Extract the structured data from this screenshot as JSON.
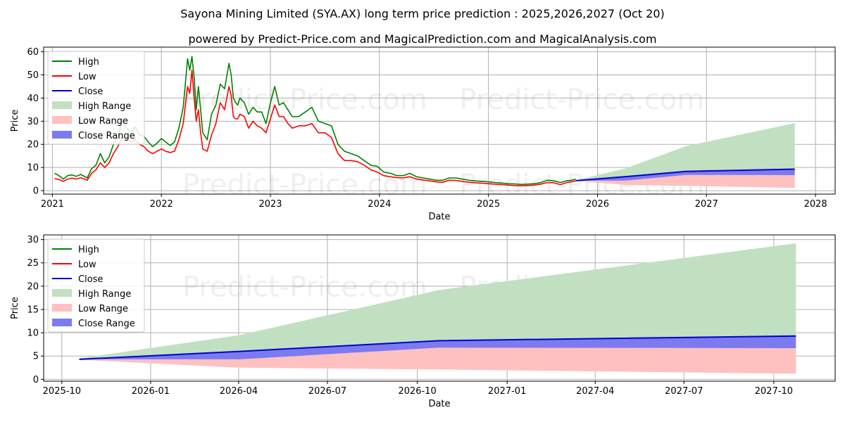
{
  "title": "Sayona Mining Limited (SYA.AX) long term price prediction : 2025,2026,2027 (Oct 20)",
  "subtitle": "powered by Predict-Price.com and MagicalPrediction.com and MagicalAnalysis.com",
  "watermark": "Predict-Price.com",
  "colors": {
    "high": "#008000",
    "low": "#ff0000",
    "close": "#0000cd",
    "high_range": "#c1e0c1",
    "low_range": "#ffc0c0",
    "close_range": "#7b7bef",
    "grid": "#b0b0b0"
  },
  "chart_data": [
    {
      "type": "line",
      "panel": "top",
      "title": "Sayona Mining Limited (SYA.AX) long term price prediction : 2025,2026,2027 (Oct 20)",
      "xlabel": "Date",
      "ylabel": "Price",
      "xlim": [
        2020.92,
        2028.18
      ],
      "ylim": [
        -1.5,
        62
      ],
      "xticks": [
        2021,
        2022,
        2023,
        2024,
        2025,
        2026,
        2027,
        2028
      ],
      "xtick_labels": [
        "2021",
        "2022",
        "2023",
        "2024",
        "2025",
        "2026",
        "2027",
        "2028"
      ],
      "yticks": [
        0,
        10,
        20,
        30,
        40,
        50,
        60
      ],
      "legend": [
        "High",
        "Low",
        "Close",
        "High Range",
        "Low Range",
        "Close Range"
      ],
      "legend_position": "top-left",
      "history": {
        "x": [
          2021.02,
          2021.06,
          2021.1,
          2021.14,
          2021.18,
          2021.22,
          2021.26,
          2021.32,
          2021.36,
          2021.4,
          2021.44,
          2021.48,
          2021.52,
          2021.56,
          2021.6,
          2021.64,
          2021.68,
          2021.72,
          2021.76,
          2021.8,
          2021.84,
          2021.88,
          2021.92,
          2021.96,
          2022.0,
          2022.04,
          2022.08,
          2022.12,
          2022.16,
          2022.2,
          2022.24,
          2022.26,
          2022.28,
          2022.3,
          2022.32,
          2022.34,
          2022.36,
          2022.38,
          2022.42,
          2022.46,
          2022.5,
          2022.54,
          2022.58,
          2022.62,
          2022.64,
          2022.66,
          2022.68,
          2022.7,
          2022.72,
          2022.76,
          2022.8,
          2022.84,
          2022.88,
          2022.92,
          2022.96,
          2023.0,
          2023.04,
          2023.08,
          2023.12,
          2023.16,
          2023.2,
          2023.26,
          2023.32,
          2023.38,
          2023.44,
          2023.5,
          2023.56,
          2023.62,
          2023.68,
          2023.74,
          2023.8,
          2023.86,
          2023.92,
          2023.98,
          2024.04,
          2024.1,
          2024.16,
          2024.22,
          2024.28,
          2024.34,
          2024.4,
          2024.46,
          2024.52,
          2024.58,
          2024.64,
          2024.7,
          2024.76,
          2024.82,
          2024.88,
          2024.94,
          2025.0,
          2025.06,
          2025.12,
          2025.18,
          2025.24,
          2025.3,
          2025.36,
          2025.42,
          2025.48,
          2025.54,
          2025.6,
          2025.66,
          2025.72,
          2025.76,
          2025.8
        ],
        "high": [
          7.5,
          6.5,
          5.0,
          6.5,
          6.8,
          6.2,
          7.0,
          5.5,
          9.5,
          11.0,
          16.0,
          12.0,
          14.5,
          20.0,
          23.0,
          30.0,
          27.0,
          25.0,
          27.5,
          24.0,
          23.5,
          21.0,
          19.0,
          20.5,
          22.5,
          21.0,
          19.5,
          21.0,
          27.0,
          36.0,
          57.0,
          52.0,
          58.0,
          49.0,
          35.0,
          45.0,
          35.0,
          25.0,
          22.0,
          33.0,
          37.0,
          46.0,
          44.0,
          55.0,
          50.0,
          40.0,
          38.0,
          37.0,
          40.0,
          38.0,
          33.0,
          36.0,
          34.0,
          34.0,
          29.0,
          38.0,
          45.0,
          37.0,
          38.0,
          35.0,
          32.0,
          32.0,
          34.0,
          36.0,
          30.0,
          29.0,
          28.0,
          20.0,
          17.0,
          16.0,
          15.0,
          13.0,
          11.0,
          10.5,
          8.0,
          7.5,
          6.5,
          6.5,
          7.5,
          6.0,
          5.5,
          5.0,
          4.5,
          4.5,
          5.5,
          5.5,
          5.0,
          4.5,
          4.2,
          4.0,
          3.8,
          3.5,
          3.3,
          3.0,
          2.9,
          2.7,
          2.8,
          3.0,
          3.5,
          4.5,
          4.2,
          3.5,
          4.3,
          4.5,
          5.0
        ],
        "low": [
          5.2,
          4.8,
          4.0,
          5.0,
          5.4,
          5.0,
          5.6,
          4.5,
          7.5,
          9.0,
          12.0,
          10.0,
          12.0,
          16.0,
          19.0,
          23.0,
          22.0,
          21.0,
          22.0,
          20.0,
          19.0,
          17.0,
          16.0,
          17.0,
          18.0,
          17.0,
          16.5,
          17.0,
          22.0,
          29.0,
          45.0,
          42.0,
          52.0,
          40.0,
          30.0,
          35.0,
          25.0,
          18.0,
          17.0,
          24.0,
          29.0,
          38.0,
          35.0,
          45.0,
          41.0,
          32.0,
          31.0,
          31.0,
          33.0,
          32.0,
          27.0,
          30.0,
          28.0,
          27.0,
          25.0,
          31.0,
          37.0,
          32.0,
          32.0,
          29.0,
          27.0,
          28.0,
          28.0,
          29.0,
          25.0,
          25.0,
          23.0,
          16.0,
          13.0,
          13.0,
          12.5,
          11.0,
          9.0,
          8.0,
          6.5,
          6.0,
          5.6,
          5.5,
          6.0,
          5.0,
          4.6,
          4.2,
          3.8,
          3.6,
          4.5,
          4.4,
          4.0,
          3.6,
          3.4,
          3.2,
          3.0,
          2.8,
          2.6,
          2.4,
          2.2,
          2.1,
          2.2,
          2.4,
          2.8,
          3.5,
          3.4,
          2.6,
          3.5,
          3.8,
          4.2
        ]
      }
    },
    {
      "type": "area",
      "panel": "bottom",
      "xlabel": "Date",
      "ylabel": "Price",
      "xlim": [
        2025.7,
        2027.92
      ],
      "ylim": [
        -0.4,
        31
      ],
      "xticks": [
        2025.751,
        2026.0,
        2026.247,
        2026.496,
        2026.748,
        2027.0,
        2027.247,
        2027.496,
        2027.748
      ],
      "xtick_labels": [
        "2025-10",
        "2026-01",
        "2026-04",
        "2026-07",
        "2026-10",
        "2027-01",
        "2027-04",
        "2027-07",
        "2027-10"
      ],
      "yticks": [
        0,
        5,
        10,
        15,
        20,
        25,
        30
      ],
      "legend": [
        "High",
        "Low",
        "Close",
        "High Range",
        "Low Range",
        "Close Range"
      ],
      "legend_position": "top-left",
      "forecast": {
        "x": [
          2025.8,
          2026.25,
          2026.81,
          2027.81
        ],
        "close": [
          4.3,
          6.0,
          8.3,
          9.3
        ],
        "close_range_upper": [
          4.3,
          6.0,
          8.3,
          9.3
        ],
        "close_range_lower": [
          4.3,
          4.3,
          6.8,
          6.7
        ],
        "high_range_upper": [
          4.5,
          9.5,
          19.2,
          29.2
        ],
        "high_range_lower": [
          4.3,
          6.0,
          8.3,
          9.3
        ],
        "low_range_upper": [
          4.3,
          4.3,
          6.8,
          6.7
        ],
        "low_range_lower": [
          4.2,
          2.5,
          2.1,
          1.2
        ]
      }
    }
  ]
}
